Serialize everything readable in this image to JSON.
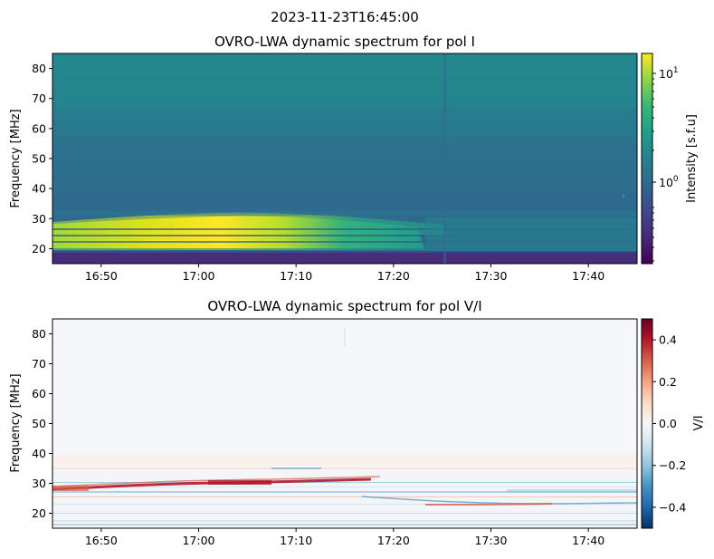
{
  "suptitle": "2023-11-23T16:45:00",
  "chart_data": [
    {
      "type": "heatmap",
      "title": "OVRO-LWA dynamic spectrum for pol I",
      "xlabel": "",
      "ylabel": "Frequency [MHz]",
      "x_ticks": [
        "16:50",
        "17:00",
        "17:10",
        "17:20",
        "17:30",
        "17:40"
      ],
      "x_range": [
        "16:45",
        "17:45"
      ],
      "y_ticks": [
        "20",
        "30",
        "40",
        "50",
        "60",
        "70",
        "80"
      ],
      "ylim": [
        15,
        85
      ],
      "colormap": "viridis",
      "colorbar": {
        "label": "Intensity [s.f.u]",
        "scale": "log",
        "range": [
          0.18,
          16
        ],
        "ticks": [
          {
            "base": "10",
            "exp": "1",
            "value": 10
          },
          {
            "base": "10",
            "exp": "0",
            "value": 1
          }
        ]
      },
      "features": [
        {
          "desc": "bright bands",
          "freq_range_mhz": [
            19,
            30
          ],
          "time_range": [
            "16:45",
            "17:25"
          ],
          "peak_time": "17:05",
          "peak_intensity_sfu": 14
        },
        {
          "desc": "background",
          "freq_range_mhz": [
            30,
            85
          ],
          "intensity_sfu": [
            0.6,
            3
          ]
        },
        {
          "desc": "vertical stripe",
          "time": "17:25"
        },
        {
          "desc": "low band",
          "freq_range_mhz": [
            15,
            18
          ],
          "intensity_sfu": 0.2
        }
      ]
    },
    {
      "type": "heatmap",
      "title": "OVRO-LWA dynamic spectrum for pol V/I",
      "xlabel": "",
      "ylabel": "Frequency [MHz]",
      "x_ticks": [
        "16:50",
        "17:00",
        "17:10",
        "17:20",
        "17:30",
        "17:40"
      ],
      "x_range": [
        "16:45",
        "17:45"
      ],
      "y_ticks": [
        "20",
        "30",
        "40",
        "50",
        "60",
        "70",
        "80"
      ],
      "ylim": [
        15,
        85
      ],
      "colormap": "RdBu_r",
      "colorbar": {
        "label": "V/I",
        "scale": "linear",
        "range": [
          -0.5,
          0.5
        ],
        "ticks": [
          "0.4",
          "0.2",
          "0.0",
          "−0.2",
          "−0.4"
        ]
      },
      "features": [
        {
          "desc": "positive streak",
          "from": [
            "16:45",
            28.5
          ],
          "to": [
            "17:15",
            31
          ],
          "value": 0.45
        },
        {
          "desc": "negative streak",
          "from": [
            "17:20",
            24
          ],
          "to": [
            "17:40",
            23
          ],
          "value": -0.25
        },
        {
          "desc": "banding",
          "freq_range_mhz": [
            16,
            38
          ]
        }
      ]
    }
  ]
}
